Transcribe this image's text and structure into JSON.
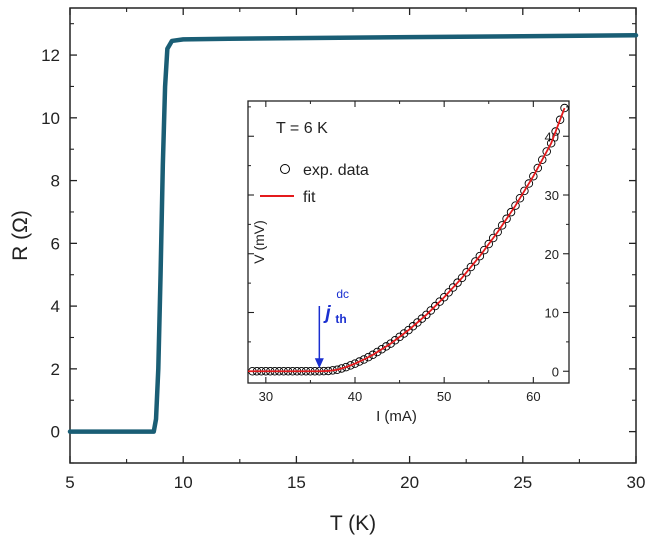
{
  "chart_data": [
    {
      "type": "line",
      "xlabel": "T (K)",
      "ylabel": "R (Ω)",
      "xlim": [
        5,
        30
      ],
      "ylim": [
        -1,
        13.5
      ],
      "xticks": [
        5,
        10,
        15,
        20,
        25,
        30
      ],
      "yticks": [
        0,
        2,
        4,
        6,
        8,
        10,
        12
      ],
      "grid": false,
      "color": "#1a5e75",
      "series": [
        {
          "x": [
            5,
            6,
            7,
            8,
            8.7,
            8.8,
            8.9,
            9.0,
            9.1,
            9.2,
            9.3,
            9.5,
            10,
            12,
            15,
            20,
            25,
            30
          ],
          "values": [
            0,
            0,
            0,
            0,
            0,
            0.4,
            2.0,
            5.0,
            8.5,
            11.0,
            12.2,
            12.45,
            12.5,
            12.52,
            12.54,
            12.57,
            12.6,
            12.63
          ]
        }
      ]
    },
    {
      "type": "scatter",
      "xlabel": "I  (mA)",
      "ylabel": "V  (mV)",
      "xlim": [
        28,
        64
      ],
      "ylim": [
        -2,
        46
      ],
      "xticks": [
        30,
        40,
        50,
        60
      ],
      "yticks": [
        0,
        10,
        20,
        30,
        40
      ],
      "grid": false,
      "legend": "top-left",
      "annotation_title": "T = 6 K",
      "arrow": {
        "x": 36,
        "label": "j",
        "superscript": "dc",
        "subscript": "th",
        "color": "#1a2fd0"
      },
      "series": [
        {
          "name": "exp. data",
          "marker": "open-circle",
          "color": "#000000",
          "x_start": 28.5,
          "x_end": 63.5,
          "x_step": 0.5
        },
        {
          "name": "fit",
          "line": true,
          "color": "#e41a1c",
          "x": [
            28,
            30,
            32,
            34,
            36,
            37,
            38,
            39,
            40,
            41,
            42,
            44,
            46,
            48,
            50,
            52,
            54,
            56,
            58,
            60,
            62,
            63.5
          ],
          "values": [
            0,
            0,
            0,
            0,
            0,
            0.05,
            0.25,
            0.7,
            1.3,
            2.0,
            2.8,
            4.7,
            7.0,
            9.6,
            12.6,
            15.9,
            19.6,
            23.7,
            28.2,
            33.2,
            38.8,
            44.8
          ]
        }
      ]
    }
  ]
}
